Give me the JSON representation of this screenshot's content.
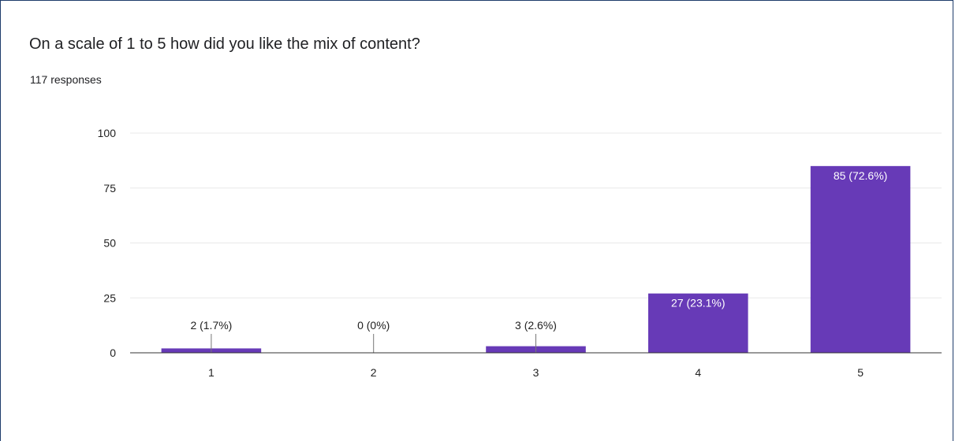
{
  "question": {
    "title": "On a scale of 1 to 5 how did you like the mix of content?",
    "responses_label": "117 responses"
  },
  "colors": {
    "bar": "#673ab7",
    "grid": "#e8e8e8",
    "axis": "#333333",
    "text": "#222222",
    "border": "#1e3c6b"
  },
  "chart_data": {
    "type": "bar",
    "categories": [
      "1",
      "2",
      "3",
      "4",
      "5"
    ],
    "values": [
      2,
      0,
      3,
      27,
      85
    ],
    "data_labels": [
      "2 (1.7%)",
      "0 (0%)",
      "3 (2.6%)",
      "27 (23.1%)",
      "85 (72.6%)"
    ],
    "ylim": [
      0,
      100
    ],
    "yticks": [
      0,
      25,
      50,
      75,
      100
    ],
    "grid": true,
    "legend": "none",
    "title": "",
    "xlabel": "",
    "ylabel": ""
  }
}
